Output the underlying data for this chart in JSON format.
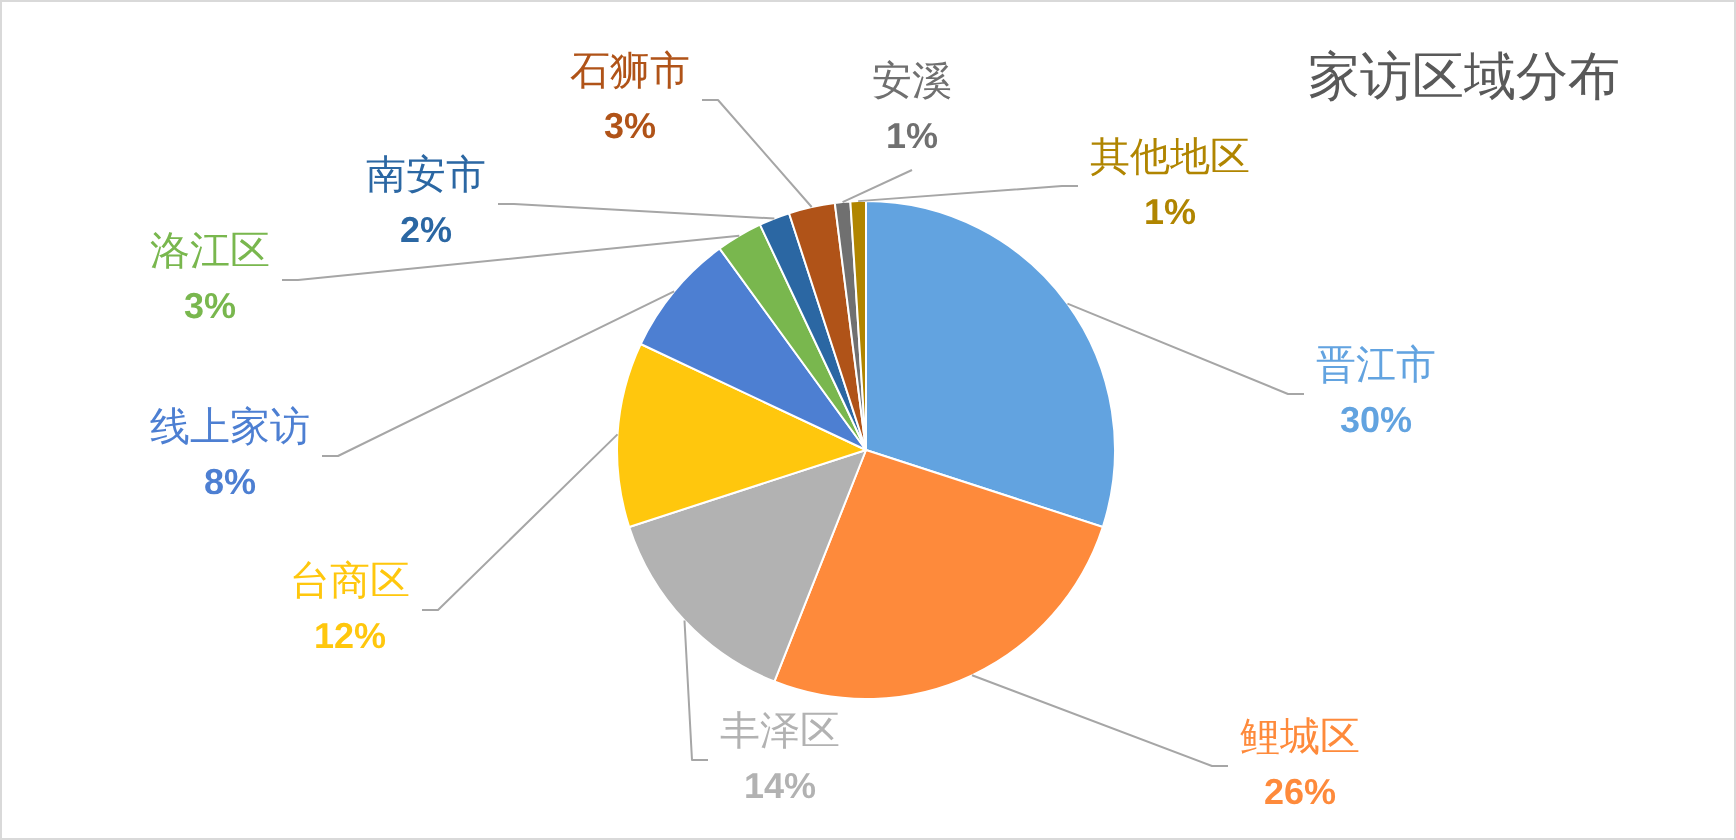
{
  "chart_data": {
    "type": "pie",
    "title": "家访区域分布",
    "categories": [
      "晋江市",
      "鲤城区",
      "丰泽区",
      "台商区",
      "线上家访",
      "洛江区",
      "南安市",
      "石狮市",
      "安溪",
      "其他地区"
    ],
    "values": [
      30,
      26,
      14,
      12,
      8,
      3,
      2,
      3,
      1,
      1
    ],
    "value_labels": [
      "30%",
      "26%",
      "14%",
      "12%",
      "8%",
      "3%",
      "2%",
      "3%",
      "1%",
      "1%"
    ],
    "colors": [
      "#62a3e0",
      "#fe8a3b",
      "#b2b2b2",
      "#ffc70d",
      "#4d7fd2",
      "#79b74e",
      "#2b67a3",
      "#b05318",
      "#707070",
      "#b08500"
    ],
    "legend": false
  }
}
